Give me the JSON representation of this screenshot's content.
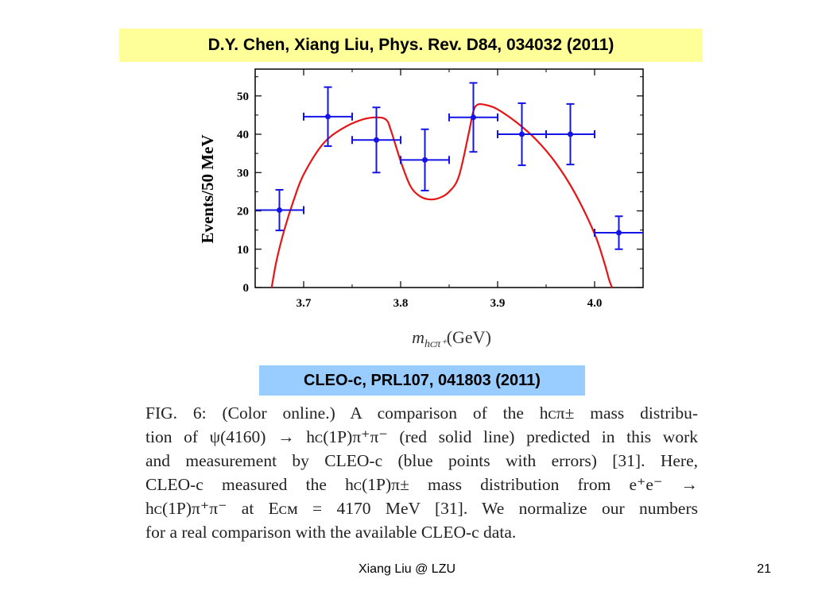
{
  "top_reference": "D.Y. Chen, Xiang Liu, Phys. Rev. D84, 034032 (2011)",
  "cleo_reference": "CLEO-c, PRL107, 041803 (2011)",
  "caption_lines": [
    "FIG. 6:  (Color online.)  A comparison of the hᴄπ± mass distribu-",
    "tion of ψ(4160) → hᴄ(1P)π⁺π⁻ (red solid line) predicted in this work",
    "and measurement by CLEO-c (blue points with errors) [31].  Here,",
    "CLEO-c measured the hᴄ(1P)π± mass distribution from e⁺e⁻  →",
    "hᴄ(1P)π⁺π⁻ at Eᴄᴍ = 4170 MeV [31].  We normalize our numbers",
    "for a real comparison with the available CLEO-c data."
  ],
  "footer": "Xiang Liu @ LZU",
  "page_number": "21",
  "colors": {
    "data": "#1414e6",
    "theory": "#e61414",
    "top_banner": "#ffff99",
    "cleo_banner": "#99ccff"
  },
  "chart_data": {
    "type": "scatter",
    "xlabel_main": "m",
    "xlabel_sub": "hᴄπ⁺",
    "xlabel_unit": "(GeV)",
    "ylabel": "Events/50 MeV",
    "xlim": [
      3.65,
      4.05
    ],
    "ylim": [
      0,
      57
    ],
    "xticks": [
      3.7,
      3.8,
      3.9,
      4.0
    ],
    "xtick_labels": [
      "3.7",
      "3.8",
      "3.9",
      "4.0"
    ],
    "yticks": [
      0,
      10,
      20,
      30,
      40,
      50
    ],
    "ytick_labels": [
      "0",
      "10",
      "20",
      "30",
      "40",
      "50"
    ],
    "series": [
      {
        "kind": "points_with_errors",
        "points": [
          {
            "x": 3.675,
            "y": 20.2,
            "xerr": 0.025,
            "yerr_lo": 5.3,
            "yerr_hi": 5.3
          },
          {
            "x": 3.725,
            "y": 44.6,
            "xerr": 0.025,
            "yerr_lo": 7.7,
            "yerr_hi": 7.7
          },
          {
            "x": 3.775,
            "y": 38.5,
            "xerr": 0.025,
            "yerr_lo": 8.5,
            "yerr_hi": 8.5
          },
          {
            "x": 3.825,
            "y": 33.3,
            "xerr": 0.025,
            "yerr_lo": 8.0,
            "yerr_hi": 8.0
          },
          {
            "x": 3.875,
            "y": 44.4,
            "xerr": 0.025,
            "yerr_lo": 9.0,
            "yerr_hi": 9.0
          },
          {
            "x": 3.925,
            "y": 40.0,
            "xerr": 0.025,
            "yerr_lo": 8.1,
            "yerr_hi": 8.1
          },
          {
            "x": 3.975,
            "y": 40.0,
            "xerr": 0.025,
            "yerr_lo": 7.9,
            "yerr_hi": 7.9
          },
          {
            "x": 4.025,
            "y": 14.3,
            "xerr": 0.025,
            "yerr_lo": 4.3,
            "yerr_hi": 4.3
          }
        ]
      },
      {
        "kind": "curve",
        "x": [
          3.667,
          3.672,
          3.68,
          3.69,
          3.7,
          3.72,
          3.74,
          3.76,
          3.775,
          3.785,
          3.79,
          3.8,
          3.81,
          3.82,
          3.83,
          3.84,
          3.85,
          3.86,
          3.87,
          3.875,
          3.88,
          3.89,
          3.9,
          3.92,
          3.94,
          3.96,
          3.98,
          4.0,
          4.01,
          4.015,
          4.018
        ],
        "y": [
          0,
          7,
          15,
          23,
          29.5,
          37.5,
          41.5,
          43.8,
          44.4,
          43.8,
          41,
          33,
          26.5,
          23.8,
          23,
          23.4,
          25,
          29,
          40,
          46,
          47.8,
          47.5,
          46.5,
          43,
          38.5,
          32.5,
          24.5,
          14,
          6.5,
          2,
          0
        ]
      }
    ],
    "grid": false,
    "legend": "none"
  }
}
